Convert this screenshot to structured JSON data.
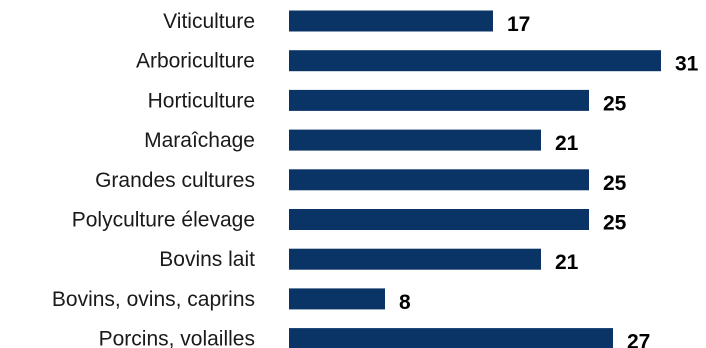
{
  "chart_data": {
    "type": "bar",
    "orientation": "horizontal",
    "title": "",
    "xlabel": "",
    "ylabel": "",
    "categories": [
      "Viticulture",
      "Arboriculture",
      "Horticulture",
      "Maraîchage",
      "Grandes cultures",
      "Polyculture élevage",
      "Bovins lait",
      "Bovins, ovins, caprins",
      "Porcins, volailles"
    ],
    "values": [
      17,
      31,
      25,
      21,
      25,
      25,
      21,
      8,
      27
    ],
    "xlim": [
      0,
      31
    ],
    "grid": false,
    "legend": "none",
    "bar_color": "#0b3466"
  }
}
